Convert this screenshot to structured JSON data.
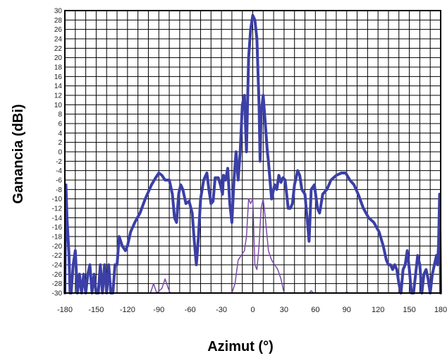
{
  "chart_data": {
    "type": "line",
    "title": "",
    "xlabel": "Azimut (°)",
    "ylabel": "Ganancia (dBi)",
    "xlim": [
      -180,
      180
    ],
    "ylim": [
      -30,
      30
    ],
    "x_ticks": [
      -180,
      -150,
      -120,
      -90,
      -60,
      -30,
      0,
      30,
      60,
      90,
      120,
      150,
      180
    ],
    "y_ticks": [
      30,
      28,
      26,
      24,
      22,
      20,
      18,
      16,
      14,
      12,
      10,
      8,
      6,
      4,
      2,
      0,
      -2,
      -4,
      -6,
      -8,
      -10,
      -12,
      -14,
      -16,
      -18,
      -20,
      -22,
      -24,
      -26,
      -28,
      -30
    ],
    "grid": true,
    "legend": "none",
    "series": [
      {
        "color": "#3b3fa6",
        "points": [
          [
            -180,
            -30
          ],
          [
            -179,
            -7
          ],
          [
            -178,
            -14
          ],
          [
            -176,
            -22
          ],
          [
            -175,
            -30
          ],
          [
            -174,
            -30
          ],
          [
            -172,
            -24
          ],
          [
            -170,
            -21
          ],
          [
            -168,
            -30
          ],
          [
            -166,
            -26
          ],
          [
            -164,
            -30
          ],
          [
            -162,
            -26
          ],
          [
            -160,
            -30
          ],
          [
            -158,
            -26
          ],
          [
            -156,
            -24
          ],
          [
            -154,
            -30
          ],
          [
            -152,
            -26
          ],
          [
            -150,
            -30
          ],
          [
            -148,
            -30
          ],
          [
            -146,
            -24
          ],
          [
            -144,
            -30
          ],
          [
            -142,
            -24
          ],
          [
            -140,
            -30
          ],
          [
            -138,
            -24
          ],
          [
            -136,
            -30
          ],
          [
            -134,
            -30
          ],
          [
            -132,
            -24
          ],
          [
            -130,
            -24
          ],
          [
            -128,
            -18
          ],
          [
            -125,
            -20
          ],
          [
            -122,
            -21
          ],
          [
            -120,
            -20
          ],
          [
            -117,
            -17
          ],
          [
            -113,
            -15
          ],
          [
            -108,
            -13
          ],
          [
            -103,
            -10
          ],
          [
            -97,
            -7
          ],
          [
            -93,
            -5.5
          ],
          [
            -90,
            -4.5
          ],
          [
            -87,
            -5
          ],
          [
            -84,
            -6
          ],
          [
            -80,
            -6
          ],
          [
            -77,
            -9
          ],
          [
            -75,
            -14
          ],
          [
            -73,
            -15
          ],
          [
            -71,
            -9
          ],
          [
            -69,
            -7
          ],
          [
            -67,
            -8
          ],
          [
            -64,
            -11
          ],
          [
            -61,
            -10.5
          ],
          [
            -58,
            -13
          ],
          [
            -56,
            -19
          ],
          [
            -54,
            -24
          ],
          [
            -52,
            -18
          ],
          [
            -50,
            -10
          ],
          [
            -47,
            -6
          ],
          [
            -44,
            -4.5
          ],
          [
            -42,
            -8
          ],
          [
            -40,
            -11
          ],
          [
            -38,
            -10.5
          ],
          [
            -36,
            -5.5
          ],
          [
            -33,
            -5.5
          ],
          [
            -31,
            -7
          ],
          [
            -29,
            -9
          ],
          [
            -28,
            -5
          ],
          [
            -26,
            -6
          ],
          [
            -24,
            -3.5
          ],
          [
            -22,
            -11
          ],
          [
            -20,
            -15
          ],
          [
            -18,
            -6
          ],
          [
            -16,
            0
          ],
          [
            -14,
            -6
          ],
          [
            -12,
            0
          ],
          [
            -10,
            10
          ],
          [
            -8,
            12
          ],
          [
            -6,
            0
          ],
          [
            -4,
            20
          ],
          [
            -2,
            26
          ],
          [
            0,
            29
          ],
          [
            2,
            28
          ],
          [
            4,
            24
          ],
          [
            6,
            10
          ],
          [
            7,
            -2
          ],
          [
            8,
            8
          ],
          [
            10,
            12
          ],
          [
            12,
            6
          ],
          [
            14,
            0
          ],
          [
            15,
            -2
          ],
          [
            18,
            -10
          ],
          [
            21,
            -7
          ],
          [
            23,
            -8
          ],
          [
            25,
            -5
          ],
          [
            27,
            -6.5
          ],
          [
            29,
            -5.5
          ],
          [
            31,
            -6
          ],
          [
            34,
            -12
          ],
          [
            36,
            -12
          ],
          [
            38,
            -11
          ],
          [
            40,
            -7
          ],
          [
            43,
            -4
          ],
          [
            45,
            -5
          ],
          [
            47,
            -8
          ],
          [
            50,
            -9
          ],
          [
            52,
            -14
          ],
          [
            54,
            -19
          ],
          [
            56,
            -8
          ],
          [
            59,
            -7
          ],
          [
            62,
            -12
          ],
          [
            64,
            -13
          ],
          [
            67,
            -9
          ],
          [
            71,
            -8
          ],
          [
            75,
            -6
          ],
          [
            80,
            -5
          ],
          [
            85,
            -4.5
          ],
          [
            89,
            -4.5
          ],
          [
            93,
            -6
          ],
          [
            97,
            -7
          ],
          [
            101,
            -9
          ],
          [
            106,
            -12
          ],
          [
            111,
            -14
          ],
          [
            116,
            -15
          ],
          [
            121,
            -17
          ],
          [
            125,
            -20
          ],
          [
            128,
            -23
          ],
          [
            130,
            -24
          ],
          [
            132,
            -24
          ],
          [
            134,
            -25
          ],
          [
            136,
            -24
          ],
          [
            138,
            -25
          ],
          [
            140,
            -28
          ],
          [
            142,
            -30
          ],
          [
            144,
            -25
          ],
          [
            146,
            -24
          ],
          [
            148,
            -21
          ],
          [
            150,
            -25
          ],
          [
            152,
            -30
          ],
          [
            154,
            -30
          ],
          [
            156,
            -26
          ],
          [
            158,
            -22
          ],
          [
            160,
            -24
          ],
          [
            162,
            -30
          ],
          [
            164,
            -26
          ],
          [
            166,
            -25
          ],
          [
            168,
            -27
          ],
          [
            170,
            -30
          ],
          [
            172,
            -26
          ],
          [
            174,
            -24
          ],
          [
            176,
            -22
          ],
          [
            177,
            -24
          ],
          [
            178,
            -20
          ],
          [
            179,
            -9
          ],
          [
            180,
            -30
          ]
        ]
      },
      {
        "color": "#7a4aa8",
        "points": [
          [
            -98,
            -30
          ],
          [
            -95,
            -28
          ],
          [
            -92,
            -30
          ],
          [
            -87,
            -29
          ],
          [
            -84,
            -27
          ],
          [
            -81,
            -29
          ],
          [
            -79,
            -30
          ],
          [
            -20,
            -30
          ],
          [
            -17,
            -28
          ],
          [
            -14,
            -23
          ],
          [
            -11,
            -22
          ],
          [
            -8,
            -21
          ],
          [
            -6,
            -18
          ],
          [
            -4,
            -10
          ],
          [
            -2,
            -11
          ],
          [
            0,
            -10
          ],
          [
            2,
            -24
          ],
          [
            4,
            -25
          ],
          [
            6,
            -20
          ],
          [
            8,
            -12
          ],
          [
            10,
            -10
          ],
          [
            12,
            -14
          ],
          [
            15,
            -21
          ],
          [
            18,
            -23
          ],
          [
            21,
            -24
          ],
          [
            24,
            -25
          ],
          [
            27,
            -27
          ],
          [
            30,
            -30
          ],
          [
            54,
            -30
          ],
          [
            56,
            -29.5
          ],
          [
            58,
            -30
          ],
          [
            89,
            -30
          ],
          [
            90,
            -29.6
          ],
          [
            91,
            -30
          ]
        ]
      }
    ]
  }
}
